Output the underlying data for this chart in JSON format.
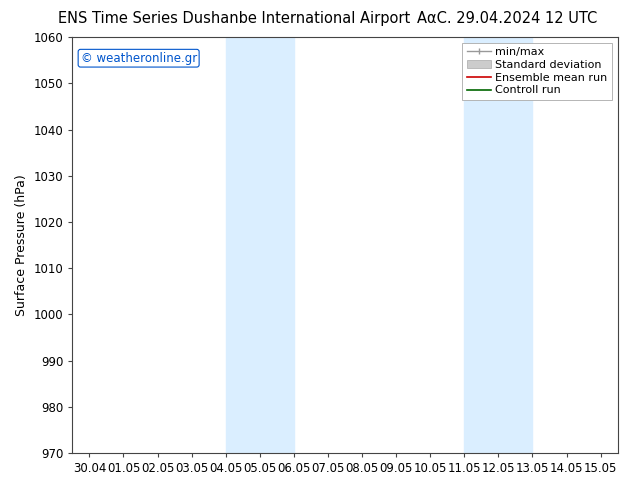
{
  "title_left": "ENS Time Series Dushanbe International Airport",
  "title_right": "ΑαϹ. 29.04.2024 12 UTC",
  "ylabel": "Surface Pressure (hPa)",
  "ylim": [
    970,
    1060
  ],
  "yticks": [
    970,
    980,
    990,
    1000,
    1010,
    1020,
    1030,
    1040,
    1050,
    1060
  ],
  "xtick_labels": [
    "30.04",
    "01.05",
    "02.05",
    "03.05",
    "04.05",
    "05.05",
    "06.05",
    "07.05",
    "08.05",
    "09.05",
    "10.05",
    "11.05",
    "12.05",
    "13.05",
    "14.05",
    "15.05"
  ],
  "shaded_regions": [
    {
      "xstart": 4.0,
      "xend": 6.0
    },
    {
      "xstart": 11.0,
      "xend": 13.0
    }
  ],
  "shaded_color": "#daeeff",
  "background_color": "#ffffff",
  "plot_bg_color": "#ffffff",
  "watermark": "© weatheronline.gr",
  "watermark_color": "#0055cc",
  "title_fontsize": 10.5,
  "axis_label_fontsize": 9,
  "tick_fontsize": 8.5,
  "legend_fontsize": 8,
  "border_color": "#444444",
  "tick_color": "#222222"
}
